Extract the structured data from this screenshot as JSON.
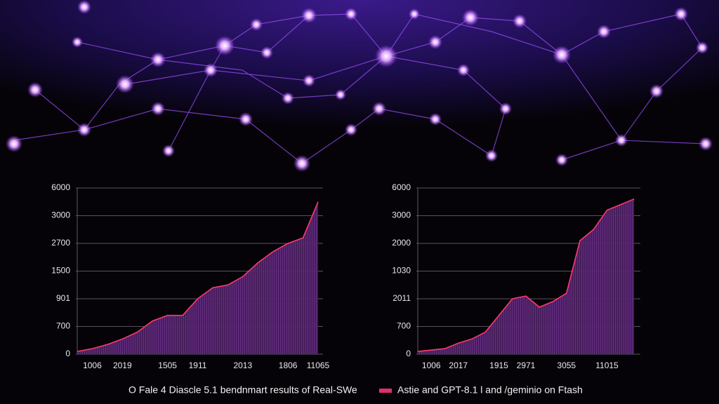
{
  "chart_data": [
    {
      "type": "area",
      "caption": "O Fale 4 Diascle 5.1 bendnmart results of Real-SWe",
      "y_labels": [
        "0",
        "700",
        "901",
        "1500",
        "2700",
        "3000",
        "6000"
      ],
      "categories": [
        null,
        "1006",
        null,
        "2019",
        null,
        null,
        "1505",
        null,
        "1911",
        null,
        null,
        "2013",
        null,
        null,
        "1806",
        null,
        "11065"
      ],
      "values": [
        0.1,
        0.2,
        0.35,
        0.55,
        0.8,
        1.2,
        1.4,
        1.4,
        2.0,
        2.4,
        2.5,
        2.8,
        3.3,
        3.7,
        4.0,
        4.2,
        5.5
      ],
      "color": "#5a2470",
      "line_color": "#ff3a6a",
      "grid": true
    },
    {
      "type": "area",
      "caption": "Astie and GPT-8.1 l and /geminio on Ftash",
      "legend_color": "#e0306a",
      "y_labels": [
        "0",
        "700",
        "2011",
        "1030",
        "2000",
        "3000",
        "6000"
      ],
      "categories": [
        null,
        "1006",
        null,
        "2017",
        null,
        null,
        "1915",
        null,
        "2971",
        null,
        null,
        "3055",
        null,
        null,
        "11015",
        null,
        null
      ],
      "values": [
        0.1,
        0.15,
        0.2,
        0.4,
        0.55,
        0.8,
        1.4,
        2.0,
        2.1,
        1.7,
        1.9,
        2.2,
        4.1,
        4.5,
        5.2,
        5.4,
        5.6
      ],
      "color": "#5a2470",
      "line_color": "#ff3a6a",
      "grid": true
    }
  ]
}
